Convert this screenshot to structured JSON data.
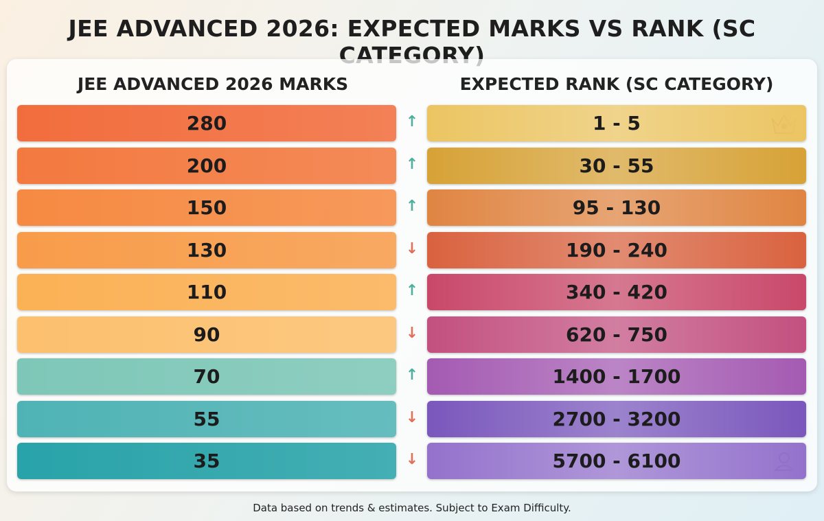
{
  "title": "JEE ADVANCED 2026: EXPECTED MARKS VS RANK (SC CATEGORY)",
  "table": {
    "headers": [
      "JEE ADVANCED 2026 MARKS",
      "EXPECTED RANK (SC CATEGORY)"
    ],
    "rows": [
      {
        "marks": "280",
        "trend": "up",
        "rank": "1 - 5",
        "marks_color": "#f26d3d",
        "rank_color": "#ecc562"
      },
      {
        "marks": "200",
        "trend": "up",
        "rank": "30 - 55",
        "marks_color": "#f3793f",
        "rank_color": "#d7a236"
      },
      {
        "marks": "150",
        "trend": "up",
        "rank": "95 - 130",
        "marks_color": "#f68a42",
        "rank_color": "#e08542"
      },
      {
        "marks": "130",
        "trend": "down",
        "rank": "190 - 240",
        "marks_color": "#f89c4a",
        "rank_color": "#d9623f"
      },
      {
        "marks": "110",
        "trend": "up",
        "rank": "340 - 420",
        "marks_color": "#fbb155",
        "rank_color": "#c9486a"
      },
      {
        "marks": "90",
        "trend": "down",
        "rank": "620 - 750",
        "marks_color": "#fcc06e",
        "rank_color": "#c35080"
      },
      {
        "marks": "70",
        "trend": "up",
        "rank": "1400 - 1700",
        "marks_color": "#7ec7b8",
        "rank_color": "#a45ab2"
      },
      {
        "marks": "55",
        "trend": "down",
        "rank": "2700 - 3200",
        "marks_color": "#4fb3b5",
        "rank_color": "#7a57bc"
      },
      {
        "marks": "35",
        "trend": "down",
        "rank": "5700 - 6100",
        "marks_color": "#28a3a9",
        "rank_color": "#9472cc"
      }
    ]
  },
  "footer": "Data based on trends & estimates. Subject to Exam Difficulty."
}
